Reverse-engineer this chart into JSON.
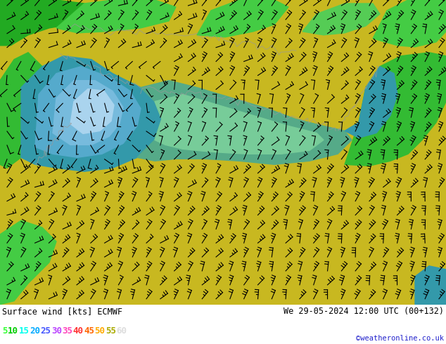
{
  "title_left": "Surface wind [kts] ECMWF",
  "title_right": "We 29-05-2024 12:00 UTC (00+132)",
  "credit": "©weatheronline.co.uk",
  "legend_values": [
    "5",
    "10",
    "15",
    "20",
    "25",
    "30",
    "35",
    "40",
    "45",
    "50",
    "55",
    "60"
  ],
  "legend_colors": [
    "#33ff33",
    "#00cc00",
    "#00ffee",
    "#00aaff",
    "#4455ff",
    "#bb44ff",
    "#ff44bb",
    "#ff3333",
    "#ff6600",
    "#ffaa00",
    "#aaaa00",
    "#dddddd"
  ],
  "figsize": [
    6.34,
    4.9
  ],
  "dpi": 100,
  "map_bg": "#c8b820",
  "green_dark": "#22aa22",
  "green_mid": "#44cc44",
  "green_light": "#88dd44",
  "cyan_dark": "#3388aa",
  "cyan_mid": "#66aacc",
  "cyan_light": "#99ccdd",
  "barb_color": "#000000",
  "border_color": "#888888"
}
